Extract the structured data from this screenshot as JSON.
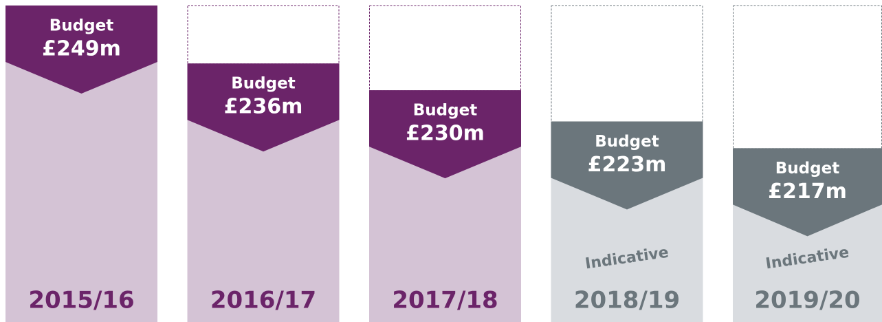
{
  "chart_data": {
    "type": "bar",
    "categories": [
      "2015/16",
      "2016/17",
      "2017/18",
      "2018/19",
      "2019/20"
    ],
    "label": "Budget",
    "values": [
      249,
      236,
      230,
      223,
      217
    ],
    "value_labels": [
      "£249m",
      "£236m",
      "£230m",
      "£223m",
      "£217m"
    ],
    "annotations": [
      null,
      null,
      null,
      "Indicative",
      "Indicative"
    ],
    "colors": [
      "#6b2469",
      "#6b2469",
      "#6b2469",
      "#6b767c",
      "#6b767c"
    ],
    "fill_colors": [
      "#d4c3d5",
      "#d4c3d5",
      "#d4c3d5",
      "#d9dce0",
      "#d9dce0"
    ],
    "ylim": [
      178,
      249
    ]
  }
}
